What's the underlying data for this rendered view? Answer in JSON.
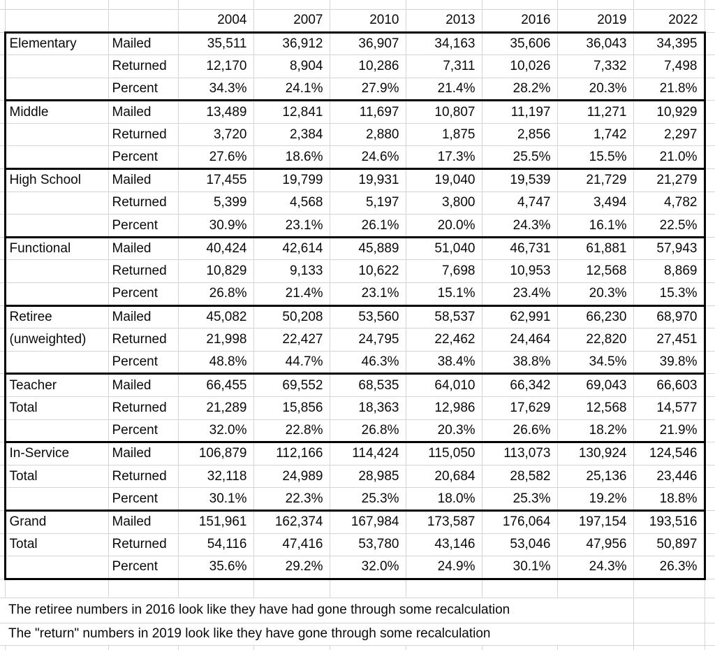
{
  "sheet": {
    "years": [
      "2004",
      "2007",
      "2010",
      "2013",
      "2016",
      "2019",
      "2022"
    ],
    "metric_labels": [
      "Mailed",
      "Returned",
      "Percent"
    ],
    "groups": [
      {
        "label1": "Elementary",
        "label2": "",
        "mailed": [
          "35,511",
          "36,912",
          "36,907",
          "34,163",
          "35,606",
          "36,043",
          "34,395"
        ],
        "returned": [
          "12,170",
          "8,904",
          "10,286",
          "7,311",
          "10,026",
          "7,332",
          "7,498"
        ],
        "percent": [
          "34.3%",
          "24.1%",
          "27.9%",
          "21.4%",
          "28.2%",
          "20.3%",
          "21.8%"
        ]
      },
      {
        "label1": "Middle",
        "label2": "",
        "mailed": [
          "13,489",
          "12,841",
          "11,697",
          "10,807",
          "11,197",
          "11,271",
          "10,929"
        ],
        "returned": [
          "3,720",
          "2,384",
          "2,880",
          "1,875",
          "2,856",
          "1,742",
          "2,297"
        ],
        "percent": [
          "27.6%",
          "18.6%",
          "24.6%",
          "17.3%",
          "25.5%",
          "15.5%",
          "21.0%"
        ]
      },
      {
        "label1": "High School",
        "label2": "",
        "mailed": [
          "17,455",
          "19,799",
          "19,931",
          "19,040",
          "19,539",
          "21,729",
          "21,279"
        ],
        "returned": [
          "5,399",
          "4,568",
          "5,197",
          "3,800",
          "4,747",
          "3,494",
          "4,782"
        ],
        "percent": [
          "30.9%",
          "23.1%",
          "26.1%",
          "20.0%",
          "24.3%",
          "16.1%",
          "22.5%"
        ]
      },
      {
        "label1": "Functional",
        "label2": "",
        "mailed": [
          "40,424",
          "42,614",
          "45,889",
          "51,040",
          "46,731",
          "61,881",
          "57,943"
        ],
        "returned": [
          "10,829",
          "9,133",
          "10,622",
          "7,698",
          "10,953",
          "12,568",
          "8,869"
        ],
        "percent": [
          "26.8%",
          "21.4%",
          "23.1%",
          "15.1%",
          "23.4%",
          "20.3%",
          "15.3%"
        ]
      },
      {
        "label1": "Retiree",
        "label2": "(unweighted)",
        "mailed": [
          "45,082",
          "50,208",
          "53,560",
          "58,537",
          "62,991",
          "66,230",
          "68,970"
        ],
        "returned": [
          "21,998",
          "22,427",
          "24,795",
          "22,462",
          "24,464",
          "22,820",
          "27,451"
        ],
        "percent": [
          "48.8%",
          "44.7%",
          "46.3%",
          "38.4%",
          "38.8%",
          "34.5%",
          "39.8%"
        ]
      },
      {
        "label1": "Teacher",
        "label2": "Total",
        "mailed": [
          "66,455",
          "69,552",
          "68,535",
          "64,010",
          "66,342",
          "69,043",
          "66,603"
        ],
        "returned": [
          "21,289",
          "15,856",
          "18,363",
          "12,986",
          "17,629",
          "12,568",
          "14,577"
        ],
        "percent": [
          "32.0%",
          "22.8%",
          "26.8%",
          "20.3%",
          "26.6%",
          "18.2%",
          "21.9%"
        ]
      },
      {
        "label1": "In-Service",
        "label2": "Total",
        "mailed": [
          "106,879",
          "112,166",
          "114,424",
          "115,050",
          "113,073",
          "130,924",
          "124,546"
        ],
        "returned": [
          "32,118",
          "24,989",
          "28,985",
          "20,684",
          "28,582",
          "25,136",
          "23,446"
        ],
        "percent": [
          "30.1%",
          "22.3%",
          "25.3%",
          "18.0%",
          "25.3%",
          "19.2%",
          "18.8%"
        ]
      },
      {
        "label1": "Grand",
        "label2": "Total",
        "mailed": [
          "151,961",
          "162,374",
          "167,984",
          "173,587",
          "176,064",
          "197,154",
          "193,516"
        ],
        "returned": [
          "54,116",
          "47,416",
          "53,780",
          "43,146",
          "53,046",
          "47,956",
          "50,897"
        ],
        "percent": [
          "35.6%",
          "29.2%",
          "32.0%",
          "24.9%",
          "30.1%",
          "24.3%",
          "26.3%"
        ]
      }
    ],
    "notes": [
      "The retiree numbers in 2016 look like they have had gone through some recalculation",
      "The \"return\" numbers in 2019 look like they have gone through some recalculation"
    ],
    "colors": {
      "background": "#ffffff",
      "grid_line": "#d4d4d4",
      "table_border": "#000000",
      "text": "#0a0a0a"
    }
  }
}
